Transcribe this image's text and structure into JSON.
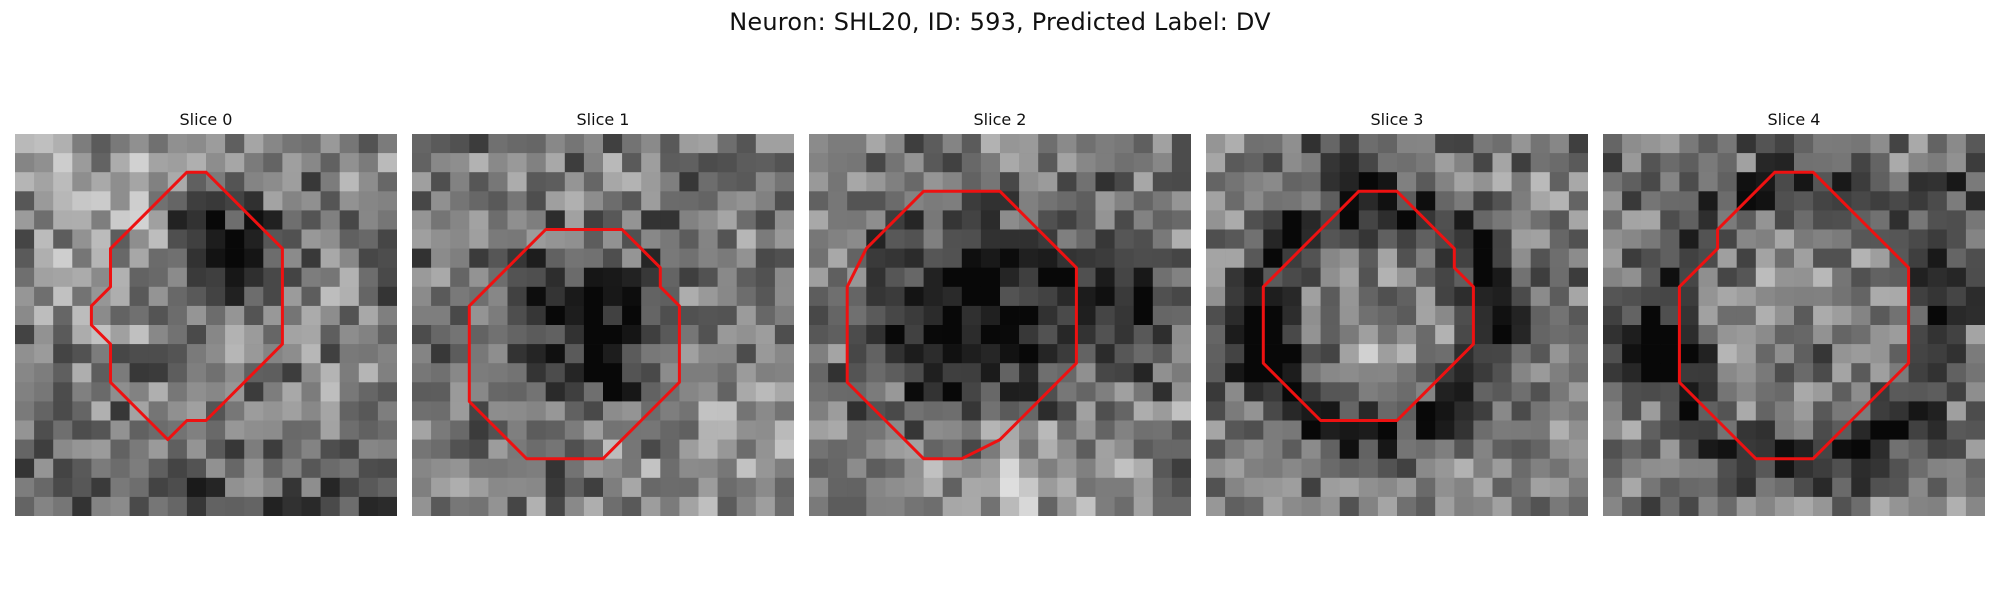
{
  "figure": {
    "title": "Neuron: SHL20, ID: 593, Predicted Label: DV"
  },
  "panels": [
    {
      "title": "Slice 0",
      "image_alt": "Grayscale microscopy slice with a small red contour",
      "contour_color": "#ee1111",
      "contour_points": [
        [
          10,
          2
        ],
        [
          12,
          4
        ],
        [
          14,
          6
        ],
        [
          14,
          11
        ],
        [
          12,
          13
        ],
        [
          10,
          15
        ],
        [
          9,
          15
        ],
        [
          8,
          16
        ],
        [
          7,
          15
        ],
        [
          6,
          14
        ],
        [
          5,
          13
        ],
        [
          5,
          11
        ],
        [
          4,
          10
        ],
        [
          4,
          9
        ],
        [
          5,
          8
        ],
        [
          5,
          6
        ],
        [
          7,
          4
        ],
        [
          8,
          3
        ],
        [
          9,
          2
        ],
        [
          10,
          2
        ]
      ]
    },
    {
      "title": "Slice 1",
      "image_alt": "Grayscale microscopy slice with a red contour around a dark cell body",
      "contour_color": "#ee1111",
      "contour_points": [
        [
          8,
          5
        ],
        [
          11,
          5
        ],
        [
          12,
          6
        ],
        [
          13,
          7
        ],
        [
          13,
          8
        ],
        [
          14,
          9
        ],
        [
          14,
          10
        ],
        [
          14,
          11
        ],
        [
          14,
          12
        ],
        [
          14,
          13
        ],
        [
          13,
          14
        ],
        [
          12,
          15
        ],
        [
          11,
          16
        ],
        [
          10,
          17
        ],
        [
          6,
          17
        ],
        [
          5,
          16
        ],
        [
          4,
          15
        ],
        [
          3,
          14
        ],
        [
          3,
          12
        ],
        [
          3,
          9
        ],
        [
          4,
          8
        ],
        [
          5,
          7
        ],
        [
          6,
          6
        ],
        [
          7,
          5
        ],
        [
          8,
          5
        ]
      ]
    },
    {
      "title": "Slice 2",
      "image_alt": "Grayscale microscopy slice with a large red contour",
      "contour_color": "#ee1111",
      "contour_points": [
        [
          8,
          3
        ],
        [
          10,
          3
        ],
        [
          11,
          4
        ],
        [
          12,
          5
        ],
        [
          13,
          6
        ],
        [
          14,
          7
        ],
        [
          14,
          8
        ],
        [
          14,
          9
        ],
        [
          14,
          10
        ],
        [
          14,
          11
        ],
        [
          14,
          12
        ],
        [
          13,
          13
        ],
        [
          12,
          14
        ],
        [
          11,
          15
        ],
        [
          10,
          16
        ],
        [
          8,
          17
        ],
        [
          6,
          17
        ],
        [
          5,
          16
        ],
        [
          4,
          15
        ],
        [
          3,
          14
        ],
        [
          2,
          13
        ],
        [
          2,
          12
        ],
        [
          2,
          10
        ],
        [
          2,
          8
        ],
        [
          3,
          6
        ],
        [
          4,
          5
        ],
        [
          5,
          4
        ],
        [
          6,
          3
        ],
        [
          8,
          3
        ]
      ]
    },
    {
      "title": "Slice 3",
      "image_alt": "Grayscale microscopy slice with a red contour around a lighter rounded region",
      "contour_color": "#ee1111",
      "contour_points": [
        [
          8,
          3
        ],
        [
          10,
          3
        ],
        [
          11,
          4
        ],
        [
          12,
          5
        ],
        [
          13,
          6
        ],
        [
          13,
          7
        ],
        [
          14,
          8
        ],
        [
          14,
          11
        ],
        [
          13,
          12
        ],
        [
          12,
          13
        ],
        [
          11,
          14
        ],
        [
          10,
          15
        ],
        [
          6,
          15
        ],
        [
          5,
          14
        ],
        [
          4,
          13
        ],
        [
          3,
          12
        ],
        [
          3,
          10
        ],
        [
          3,
          8
        ],
        [
          4,
          7
        ],
        [
          5,
          6
        ],
        [
          6,
          5
        ],
        [
          7,
          4
        ],
        [
          8,
          3
        ]
      ]
    },
    {
      "title": "Slice 4",
      "image_alt": "Grayscale microscopy slice with a large red contour",
      "contour_color": "#ee1111",
      "contour_points": [
        [
          9,
          2
        ],
        [
          11,
          2
        ],
        [
          12,
          3
        ],
        [
          13,
          4
        ],
        [
          14,
          5
        ],
        [
          15,
          6
        ],
        [
          16,
          7
        ],
        [
          16,
          9
        ],
        [
          16,
          12
        ],
        [
          15,
          13
        ],
        [
          14,
          14
        ],
        [
          13,
          15
        ],
        [
          12,
          16
        ],
        [
          11,
          17
        ],
        [
          8,
          17
        ],
        [
          7,
          16
        ],
        [
          6,
          15
        ],
        [
          5,
          14
        ],
        [
          4,
          13
        ],
        [
          4,
          12
        ],
        [
          4,
          9
        ],
        [
          4,
          8
        ],
        [
          5,
          7
        ],
        [
          6,
          6
        ],
        [
          6,
          5
        ],
        [
          7,
          4
        ],
        [
          8,
          3
        ],
        [
          9,
          2
        ]
      ]
    }
  ]
}
